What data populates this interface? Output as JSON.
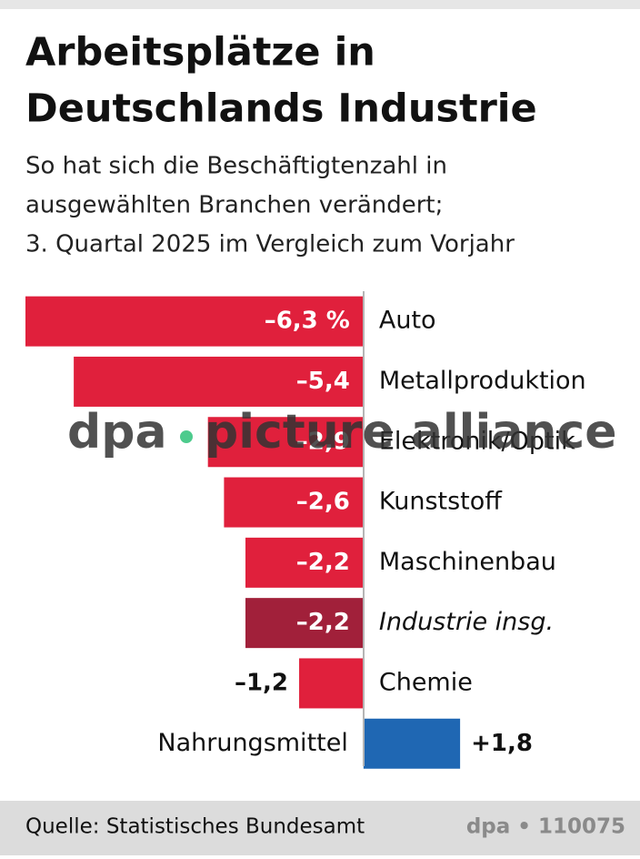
{
  "chart_data": {
    "type": "hbar",
    "title": [
      "Arbeitsplätze in",
      "Deutschlands Industrie"
    ],
    "subtitle": [
      "So hat sich die Beschäftigtenzahl in",
      "ausgewählten Branchen verändert;",
      "3. Quartal 2025 im Vergleich zum Vorjahr"
    ],
    "categories": [
      "Auto",
      "Metallproduktion",
      "Elektronik/Optik",
      "Kunststoff",
      "Maschinenbau",
      "Industrie insg.",
      "Chemie",
      "Nahrungsmittel"
    ],
    "values": [
      -6.3,
      -5.4,
      -2.9,
      -2.6,
      -2.2,
      -2.2,
      -1.2,
      1.8
    ],
    "value_labels": [
      "–6,3 %",
      "–5,4",
      "–2,9",
      "–2,6",
      "–2,2",
      "–2,2",
      "–1,2",
      "+1,8"
    ],
    "colors": [
      "#e0203c",
      "#e0203c",
      "#e0203c",
      "#e0203c",
      "#e0203c",
      "#a1203a",
      "#e0203c",
      "#1f67b3"
    ],
    "xlim": [
      -6.3,
      5
    ],
    "watermark": [
      "dpa",
      "picture alliance"
    ],
    "source": "Quelle: Statistisches Bundesamt",
    "credit": "dpa • 110075"
  }
}
